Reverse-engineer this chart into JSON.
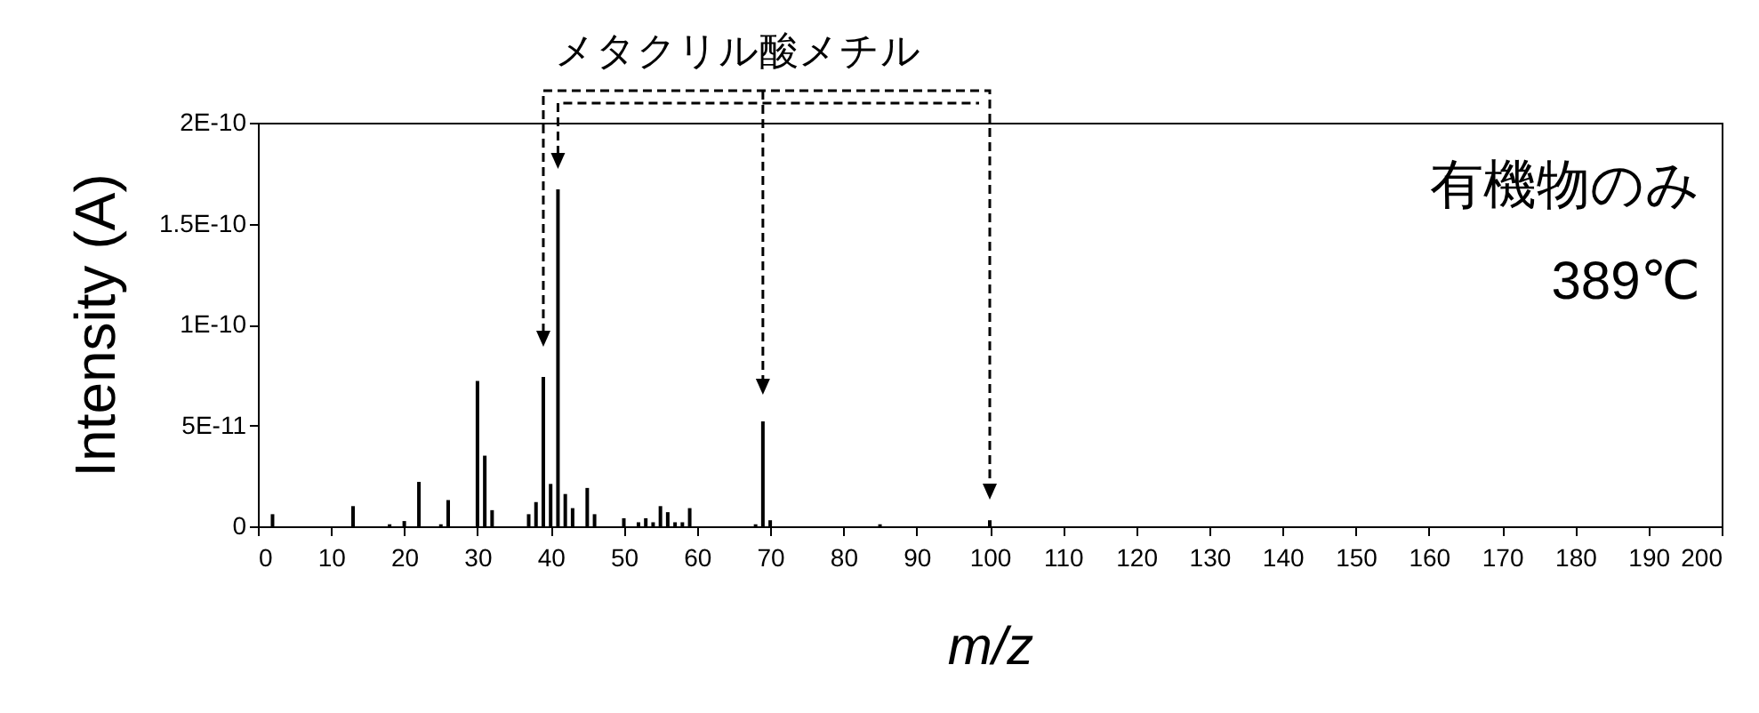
{
  "chart_data": {
    "type": "bar",
    "xlabel": "m/z",
    "ylabel": "Intensity (A)",
    "annotations": [
      "メタクリル酸メチル",
      "有機物のみ",
      "389℃"
    ],
    "x": [
      2,
      13,
      18,
      20,
      22,
      25,
      26,
      30,
      31,
      32,
      37,
      38,
      39,
      40,
      41,
      42,
      43,
      45,
      46,
      50,
      52,
      53,
      54,
      55,
      56,
      57,
      58,
      59,
      68,
      69,
      70,
      85,
      100
    ],
    "values": [
      6e-12,
      1e-11,
      1e-12,
      2.6e-12,
      2.2e-11,
      1e-12,
      1.3e-11,
      7.2e-11,
      3.5e-11,
      8e-12,
      6e-12,
      1.2e-11,
      7.4e-11,
      2.1e-11,
      1.67e-10,
      1.6e-11,
      9e-12,
      1.9e-11,
      6e-12,
      4e-12,
      2e-12,
      4e-12,
      2e-12,
      1e-11,
      7e-12,
      2e-12,
      2e-12,
      9e-12,
      1e-12,
      5.2e-11,
      3e-12,
      1e-12,
      3e-12
    ],
    "color": "#000000",
    "xlim": [
      0,
      200
    ],
    "xticks": [
      0,
      10,
      20,
      30,
      40,
      50,
      60,
      70,
      80,
      90,
      100,
      110,
      120,
      130,
      140,
      150,
      160,
      170,
      180,
      190,
      200
    ],
    "ylim": [
      0,
      2e-10
    ],
    "yticks": [
      {
        "value": 0,
        "label": "0"
      },
      {
        "value": 5e-11,
        "label": "5E-11"
      },
      {
        "value": 1e-10,
        "label": "1E-10"
      },
      {
        "value": 1.5e-10,
        "label": "1.5E-10"
      },
      {
        "value": 2e-10,
        "label": "2E-10"
      }
    ]
  }
}
